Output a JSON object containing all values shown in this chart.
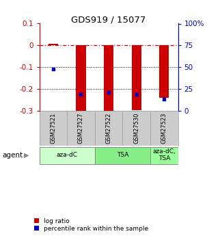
{
  "title": "GDS919 / 15077",
  "samples": [
    "GSM27521",
    "GSM27527",
    "GSM27522",
    "GSM27530",
    "GSM27523"
  ],
  "log_ratios": [
    0.008,
    -0.3,
    -0.31,
    -0.295,
    -0.24
  ],
  "percentile_ranks_pct": [
    48,
    18.5,
    21.5,
    19.0,
    13.5
  ],
  "bar_color": "#cc0000",
  "dot_color": "#0000cc",
  "ylim_left": [
    -0.3,
    0.1
  ],
  "ylim_right": [
    0,
    100
  ],
  "yticks_left": [
    0.1,
    0.0,
    -0.1,
    -0.2,
    -0.3
  ],
  "ytick_labels_left": [
    "0.1",
    "0",
    "-0.1",
    "-0.2",
    "-0.3"
  ],
  "yticks_right": [
    100,
    75,
    50,
    25,
    0
  ],
  "ytick_labels_right": [
    "100%",
    "75",
    "50",
    "25",
    "0"
  ],
  "hline_color": "#cc0000",
  "hline_y": 0.0,
  "dotted_lines": [
    -0.1,
    -0.2
  ],
  "agent_groups": [
    {
      "label": "aza-dC",
      "span": [
        0,
        2
      ],
      "color": "#ccffcc"
    },
    {
      "label": "TSA",
      "span": [
        2,
        4
      ],
      "color": "#88ee88"
    },
    {
      "label": "aza-dC,\nTSA",
      "span": [
        4,
        5
      ],
      "color": "#99ff99"
    }
  ],
  "bar_width": 0.35,
  "background_color": "#ffffff",
  "agent_label": "agent",
  "legend_log_ratio": "log ratio",
  "legend_percentile": "percentile rank within the sample",
  "sample_bg": "#cccccc",
  "spine_color_left": "#cc0000",
  "spine_color_right": "#0000cc"
}
